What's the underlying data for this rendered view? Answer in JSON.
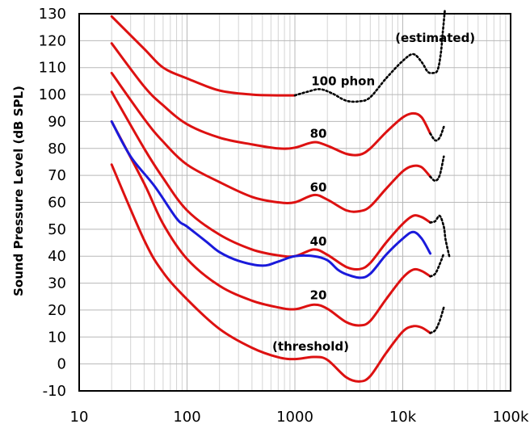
{
  "chart_data": {
    "type": "line",
    "title": "",
    "xlabel": "",
    "ylabel": "Sound Pressure Level (dB SPL)",
    "xscale": "log",
    "xlim": [
      10,
      100000
    ],
    "ylim": [
      -10,
      130
    ],
    "grid": true,
    "x_ticks": [
      "10",
      "100",
      "1000",
      "10k",
      "100k"
    ],
    "y_ticks": [
      "130",
      "120",
      "110",
      "100",
      "90",
      "80",
      "70",
      "60",
      "50",
      "40",
      "30",
      "20",
      "10",
      "0",
      "-10"
    ],
    "annotations": [
      "(estimated)",
      "100 phon",
      "80",
      "60",
      "40",
      "20",
      "(threshold)"
    ],
    "colors": {
      "contour": "#dd1111",
      "reference": "#1a1adb",
      "estimated": "#000000"
    },
    "series": [
      {
        "id": "threshold",
        "style": "solid",
        "points": [
          [
            20,
            74
          ],
          [
            40,
            46
          ],
          [
            60,
            34
          ],
          [
            100,
            24
          ],
          [
            200,
            13
          ],
          [
            400,
            6
          ],
          [
            700,
            2.5
          ],
          [
            1000,
            1.8
          ],
          [
            1500,
            2.6
          ],
          [
            2000,
            1.5
          ],
          [
            3000,
            -5
          ],
          [
            4000,
            -6.5
          ],
          [
            5000,
            -4.5
          ],
          [
            7000,
            4
          ],
          [
            10000,
            12
          ],
          [
            12500,
            14
          ],
          [
            15000,
            13.5
          ],
          [
            18000,
            11.5
          ]
        ]
      },
      {
        "id": "threshold-est",
        "style": "dotted",
        "points": [
          [
            18000,
            11.5
          ],
          [
            20000,
            12.5
          ],
          [
            22000,
            16
          ],
          [
            24000,
            21
          ]
        ]
      },
      {
        "id": "20-phon",
        "style": "solid",
        "points": [
          [
            20,
            90
          ],
          [
            40,
            67
          ],
          [
            60,
            52
          ],
          [
            100,
            39
          ],
          [
            200,
            29
          ],
          [
            400,
            23.5
          ],
          [
            700,
            21
          ],
          [
            1000,
            20.3
          ],
          [
            1500,
            22
          ],
          [
            2000,
            20.5
          ],
          [
            3000,
            15.5
          ],
          [
            4000,
            14.3
          ],
          [
            5000,
            16
          ],
          [
            7000,
            24
          ],
          [
            10000,
            32
          ],
          [
            12500,
            35
          ],
          [
            15000,
            34.5
          ],
          [
            18000,
            32.5
          ]
        ]
      },
      {
        "id": "20-phon-est",
        "style": "dotted",
        "points": [
          [
            18000,
            32.5
          ],
          [
            20000,
            33.5
          ],
          [
            22000,
            37
          ],
          [
            24000,
            41
          ]
        ]
      },
      {
        "id": "40-phon",
        "style": "solid",
        "points": [
          [
            20,
            101
          ],
          [
            40,
            80
          ],
          [
            60,
            69
          ],
          [
            100,
            57
          ],
          [
            200,
            48
          ],
          [
            400,
            42.5
          ],
          [
            700,
            40.3
          ],
          [
            1000,
            40
          ],
          [
            1500,
            42.5
          ],
          [
            2000,
            40.5
          ],
          [
            3000,
            36
          ],
          [
            4000,
            35.2
          ],
          [
            5000,
            37.5
          ],
          [
            7000,
            45
          ],
          [
            10000,
            52
          ],
          [
            12500,
            55
          ],
          [
            15000,
            54.5
          ],
          [
            18000,
            52.5
          ]
        ]
      },
      {
        "id": "40-phon-est",
        "style": "dotted",
        "points": [
          [
            18000,
            52.5
          ],
          [
            20000,
            53
          ],
          [
            22000,
            55
          ],
          [
            24000,
            51
          ],
          [
            25000,
            46
          ],
          [
            27000,
            40
          ]
        ]
      },
      {
        "id": "60-phon",
        "style": "solid",
        "points": [
          [
            20,
            108
          ],
          [
            40,
            91
          ],
          [
            60,
            82.5
          ],
          [
            100,
            74
          ],
          [
            200,
            67.5
          ],
          [
            400,
            62
          ],
          [
            700,
            60
          ],
          [
            1000,
            60
          ],
          [
            1500,
            62.7
          ],
          [
            2000,
            61
          ],
          [
            3000,
            57
          ],
          [
            4000,
            56.7
          ],
          [
            5000,
            58.5
          ],
          [
            7000,
            65
          ],
          [
            10000,
            71.5
          ],
          [
            12500,
            73.5
          ],
          [
            15000,
            73
          ],
          [
            18000,
            69.5
          ]
        ]
      },
      {
        "id": "60-phon-est",
        "style": "dotted",
        "points": [
          [
            18000,
            69.5
          ],
          [
            20000,
            68
          ],
          [
            22000,
            70
          ],
          [
            24000,
            77
          ]
        ]
      },
      {
        "id": "80-phon",
        "style": "solid",
        "points": [
          [
            20,
            119
          ],
          [
            40,
            103
          ],
          [
            60,
            96
          ],
          [
            100,
            89
          ],
          [
            200,
            84
          ],
          [
            400,
            81.5
          ],
          [
            700,
            80
          ],
          [
            1000,
            80.3
          ],
          [
            1500,
            82.3
          ],
          [
            2000,
            81
          ],
          [
            3000,
            78
          ],
          [
            4000,
            77.7
          ],
          [
            5000,
            80
          ],
          [
            7000,
            86
          ],
          [
            10000,
            91.5
          ],
          [
            12500,
            93
          ],
          [
            15000,
            91.5
          ],
          [
            18000,
            85.5
          ]
        ]
      },
      {
        "id": "80-phon-est",
        "style": "dotted",
        "points": [
          [
            18000,
            85.5
          ],
          [
            20000,
            83
          ],
          [
            22000,
            84
          ],
          [
            24000,
            88
          ]
        ]
      },
      {
        "id": "100-phon",
        "style": "solid",
        "points": [
          [
            20,
            129
          ],
          [
            40,
            117
          ],
          [
            60,
            110
          ],
          [
            100,
            106
          ],
          [
            200,
            101.5
          ],
          [
            400,
            100
          ],
          [
            700,
            99.7
          ],
          [
            1000,
            99.7
          ]
        ]
      },
      {
        "id": "100-phon-est",
        "style": "dotted",
        "points": [
          [
            1000,
            99.7
          ],
          [
            1300,
            101
          ],
          [
            1700,
            102
          ],
          [
            2200,
            100.5
          ],
          [
            3000,
            97.7
          ],
          [
            4000,
            97.5
          ],
          [
            5000,
            99
          ],
          [
            7000,
            106
          ],
          [
            10000,
            112.5
          ],
          [
            12500,
            115
          ],
          [
            15000,
            112
          ],
          [
            17000,
            108.5
          ],
          [
            19000,
            108
          ],
          [
            21000,
            109
          ],
          [
            22500,
            115
          ],
          [
            23500,
            123
          ],
          [
            24500,
            131
          ]
        ]
      },
      {
        "id": "reference",
        "style": "solid",
        "points": [
          [
            20,
            90
          ],
          [
            30,
            77
          ],
          [
            50,
            66
          ],
          [
            80,
            54
          ],
          [
            100,
            51
          ],
          [
            150,
            45.5
          ],
          [
            200,
            41.5
          ],
          [
            300,
            38.3
          ],
          [
            500,
            36.5
          ],
          [
            700,
            38
          ],
          [
            1000,
            40
          ],
          [
            1500,
            40
          ],
          [
            2000,
            38.5
          ],
          [
            2500,
            35
          ],
          [
            3000,
            33.3
          ],
          [
            4000,
            32
          ],
          [
            5000,
            33.5
          ],
          [
            7000,
            40.5
          ],
          [
            10000,
            46.5
          ],
          [
            12500,
            49
          ],
          [
            15000,
            46.5
          ],
          [
            18000,
            41
          ]
        ]
      }
    ]
  }
}
